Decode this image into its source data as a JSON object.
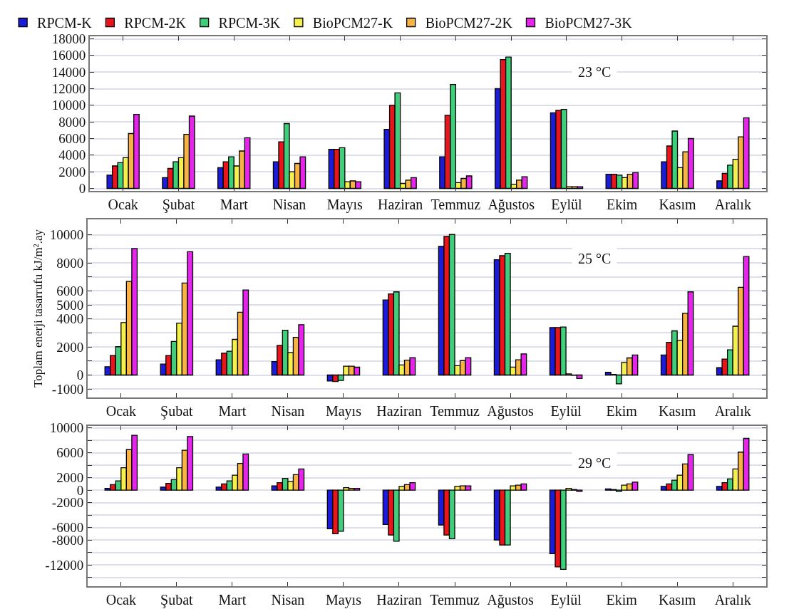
{
  "chart_data": [
    {
      "type": "bar",
      "categories": [
        "Ocak",
        "Şubat",
        "Mart",
        "Nisan",
        "Mayıs",
        "Haziran",
        "Temmuz",
        "Ağustos",
        "Eylül",
        "Ekim",
        "Kasım",
        "Aralık"
      ],
      "series": [
        {
          "name": "RPCM-K",
          "color": "#1c1cd8",
          "values": [
            1600,
            1300,
            2500,
            3200,
            4700,
            7100,
            3800,
            12000,
            9100,
            1700,
            3200,
            900
          ]
        },
        {
          "name": "RPCM-2K",
          "color": "#e8161c",
          "values": [
            2700,
            2400,
            3200,
            5600,
            4700,
            10000,
            8800,
            15500,
            9400,
            1700,
            5100,
            1800
          ]
        },
        {
          "name": "RPCM-3K",
          "color": "#3fcf7a",
          "values": [
            3100,
            3200,
            3800,
            7800,
            4900,
            11500,
            12500,
            15800,
            9500,
            1600,
            6900,
            2800
          ]
        },
        {
          "name": "BioPCM27-K",
          "color": "#f6f04c",
          "values": [
            3700,
            3700,
            2700,
            2000,
            800,
            600,
            700,
            500,
            200,
            1300,
            2500,
            3500
          ]
        },
        {
          "name": "BioPCM27-2K",
          "color": "#f7b444",
          "values": [
            6600,
            6500,
            4500,
            3000,
            900,
            1000,
            1200,
            1000,
            200,
            1700,
            4400,
            6200
          ]
        },
        {
          "name": "BioPCM27-3K",
          "color": "#e425ea",
          "values": [
            8900,
            8700,
            6100,
            3800,
            800,
            1300,
            1500,
            1400,
            200,
            1900,
            6000,
            8500
          ]
        }
      ],
      "ylim": [
        -300,
        18300
      ],
      "yticks": [
        0,
        2000,
        4000,
        6000,
        8000,
        10000,
        12000,
        14000,
        16000,
        18000
      ],
      "grid": "y",
      "legend": "top",
      "annotations": [
        "23 °C"
      ]
    },
    {
      "type": "bar",
      "categories": [
        "Ocak",
        "Şubat",
        "Mart",
        "Nisan",
        "Mayıs",
        "Haziran",
        "Temmuz",
        "Ağustos",
        "Eylül",
        "Ekim",
        "Kasım",
        "Aralık"
      ],
      "series": [
        {
          "color": "#1c1cd8",
          "values": [
            590,
            780,
            1090,
            960,
            -430,
            5350,
            9180,
            8220,
            3380,
            190,
            1430,
            520
          ]
        },
        {
          "color": "#e8161c",
          "values": [
            1390,
            1390,
            1560,
            2110,
            -460,
            5780,
            9890,
            8510,
            3380,
            40,
            2330,
            1130
          ]
        },
        {
          "color": "#3fcf7a",
          "values": [
            2020,
            2390,
            1700,
            3190,
            -390,
            5930,
            10020,
            8680,
            3420,
            -630,
            3150,
            1800
          ]
        },
        {
          "color": "#f6f04c",
          "values": [
            3740,
            3700,
            2540,
            1610,
            630,
            720,
            670,
            570,
            80,
            900,
            2470,
            3480
          ]
        },
        {
          "color": "#f7b444",
          "values": [
            6670,
            6560,
            4480,
            2690,
            630,
            1060,
            1030,
            1090,
            -20,
            1220,
            4400,
            6250
          ]
        },
        {
          "color": "#e425ea",
          "values": [
            9020,
            8800,
            6060,
            3590,
            560,
            1240,
            1240,
            1510,
            -250,
            1430,
            5930,
            8450
          ]
        }
      ],
      "ylim": [
        -1600,
        11100
      ],
      "yticks": [
        -1000,
        0,
        {
          "value": 1000,
          "label": null
        },
        2000,
        {
          "value": 3000,
          "label": null
        },
        4000,
        5000,
        6000,
        {
          "value": 7000,
          "label": null
        },
        8000,
        {
          "value": 9000,
          "label": null
        },
        10000
      ],
      "grid": "y",
      "legend": false,
      "ylabel": "Toplam enerji tasarrufu kJ/m².ay",
      "annotations": [
        "25 °C"
      ]
    },
    {
      "type": "bar",
      "categories": [
        "Ocak",
        "Şubat",
        "Mart",
        "Nisan",
        "Mayıs",
        "Haziran",
        "Temmuz",
        "Ağustos",
        "Eylül",
        "Ekim",
        "Kasım",
        "Aralık"
      ],
      "series": [
        {
          "color": "#1c1cd8",
          "values": [
            300,
            500,
            500,
            700,
            -6200,
            -5500,
            -5600,
            -8000,
            -10200,
            200,
            600,
            600
          ]
        },
        {
          "color": "#e8161c",
          "values": [
            900,
            1100,
            1000,
            1200,
            -7000,
            -7200,
            -7200,
            -8800,
            -12300,
            100,
            1000,
            1200
          ]
        },
        {
          "color": "#3fcf7a",
          "values": [
            1500,
            1700,
            1500,
            1900,
            -6600,
            -8200,
            -7800,
            -8800,
            -12700,
            -200,
            1600,
            1800
          ]
        },
        {
          "color": "#f6f04c",
          "values": [
            3600,
            3600,
            2400,
            1400,
            400,
            600,
            600,
            700,
            300,
            800,
            2400,
            3400
          ]
        },
        {
          "color": "#f7b444",
          "values": [
            6500,
            6400,
            4300,
            2500,
            300,
            900,
            700,
            800,
            100,
            1000,
            4200,
            6100
          ]
        },
        {
          "color": "#e425ea",
          "values": [
            8800,
            8600,
            5800,
            3400,
            300,
            1200,
            700,
            1000,
            -200,
            1300,
            5700,
            8300
          ]
        }
      ],
      "ylim": [
        -15400,
        10300
      ],
      "yticks": [
        {
          "value": -14000,
          "label": null
        },
        -12000,
        {
          "value": -10000,
          "label": null
        },
        -8000,
        -6000,
        {
          "value": -4000,
          "label": null
        },
        -2000,
        0,
        2000,
        {
          "value": 4000,
          "label": null
        },
        6000,
        {
          "value": 8000,
          "label": null
        },
        10000
      ],
      "grid": "y",
      "legend": false,
      "annotations": [
        "29 °C"
      ]
    }
  ]
}
